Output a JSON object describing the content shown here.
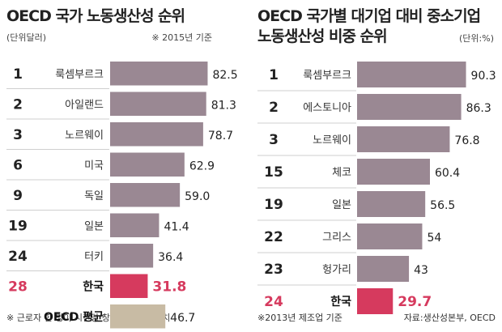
{
  "chart_data": [
    {
      "type": "bar",
      "orientation": "horizontal",
      "title": "OECD 국가 노동생산성 순위",
      "unit": "(단위달러)",
      "note": "※ 2015년 기준",
      "footnote": "※ 근로자 한 명이 시간당 창출하는 부가가치",
      "ranks": [
        "1",
        "2",
        "3",
        "6",
        "9",
        "19",
        "24",
        "28",
        ""
      ],
      "categories": [
        "룩셈부르크",
        "아일랜드",
        "노르웨이",
        "미국",
        "독일",
        "일본",
        "터키",
        "한국",
        "OECD 평균"
      ],
      "values": [
        82.5,
        81.3,
        78.7,
        62.9,
        59.0,
        41.4,
        36.4,
        31.8,
        46.7
      ],
      "value_labels": [
        "82.5",
        "81.3",
        "78.7",
        "62.9",
        "59.0",
        "41.4",
        "36.4",
        "31.8",
        "46.7"
      ],
      "highlight": "한국",
      "colors": {
        "default": "#9a8893",
        "highlight": "#d63a5e",
        "average": "#c8bba4"
      }
    },
    {
      "type": "bar",
      "orientation": "horizontal",
      "title_lines": [
        "OECD 국가별 대기업 대비 중소기업",
        "노동생산성 비중 순위"
      ],
      "unit": "(단위:%)",
      "footnote": "※2013년 제조업 기준",
      "source": "자료:생산성본부, OECD",
      "ranks": [
        "1",
        "2",
        "3",
        "15",
        "19",
        "22",
        "23",
        "24"
      ],
      "categories": [
        "룩셈부르크",
        "에스토니아",
        "노르웨이",
        "체코",
        "일본",
        "그리스",
        "헝가리",
        "한국"
      ],
      "values": [
        90.3,
        86.3,
        76.8,
        60.4,
        56.5,
        54,
        43,
        29.7
      ],
      "value_labels": [
        "90.3",
        "86.3",
        "76.8",
        "60.4",
        "56.5",
        "54",
        "43",
        "29.7"
      ],
      "highlight": "한국",
      "colors": {
        "default": "#9a8893",
        "highlight": "#d63a5e"
      }
    }
  ]
}
